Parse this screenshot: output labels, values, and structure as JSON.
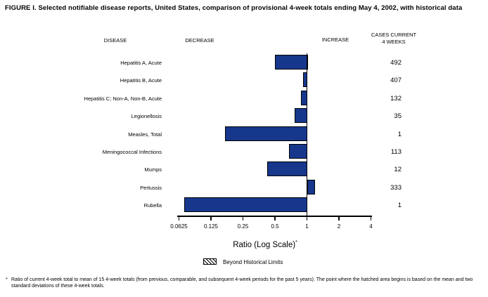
{
  "title": "FIGURE I. Selected notifiable disease reports, United States, comparison of provisional 4-week totals ending May 4, 2002, with historical data",
  "headers": {
    "disease": "DISEASE",
    "decrease": "DECREASE",
    "increase": "INCREASE",
    "cases_line1": "CASES CURRENT",
    "cases_line2": "4 WEEKS"
  },
  "chart_data": {
    "type": "bar",
    "orientation": "horizontal",
    "x_scale": "log",
    "baseline": 1,
    "categories": [
      "Hepatitis A, Acute",
      "Hepatitis B, Acute",
      "Hepatitis C; Non-A, Non-B, Acute",
      "Legionellosis",
      "Measles, Total",
      "Meningococcal Infections",
      "Mumps",
      "Pertussis",
      "Rubella"
    ],
    "ratios": [
      0.5,
      0.92,
      0.88,
      0.77,
      0.17,
      0.68,
      0.42,
      1.17,
      0.07
    ],
    "cases_current_4_weeks": [
      492,
      407,
      132,
      35,
      1,
      113,
      12,
      333,
      1
    ],
    "x_ticks": [
      0.0625,
      0.125,
      0.25,
      0.5,
      1,
      2,
      4
    ],
    "x_tick_labels": [
      "0.0625",
      "0.125",
      "0.25",
      "0.5",
      "1",
      "2",
      "4"
    ],
    "xlabel_text": "Ratio (Log Scale)",
    "xlabel_sup": "*",
    "bar_color": "#16378C",
    "axis_color": "#000000",
    "legend": {
      "label": "Beyond Historical Limits",
      "swatch": "diagonal-hatch"
    }
  },
  "footnote": {
    "marker": "*",
    "text": "Ratio of current 4-week total to mean of 15 4-week totals (from previous, comparable, and subsequent 4-week periods for the past 5 years). The point where the hatched area begins is based on the mean and two standard deviations of these 4-week totals."
  }
}
